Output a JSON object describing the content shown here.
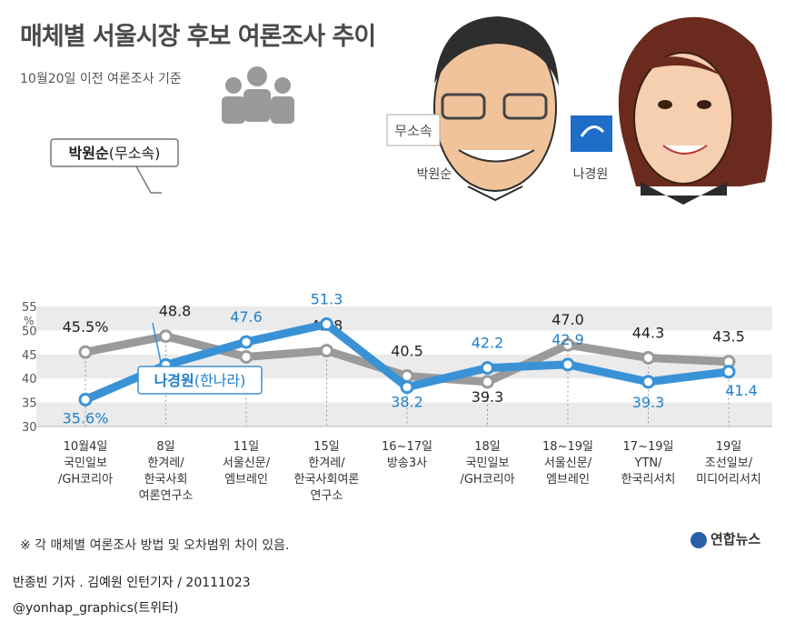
{
  "title": "매체별 서울시장 후보 여론조사 추이",
  "subtitle": "10월20일 이전 여론조사 기준",
  "footnote": "※ 각 매체별 여론조사 방법 및 오차범위 차이 있음.",
  "credit": "반종빈 기자 . 김예원 인턴기자 / 20111023",
  "twitter": "@yonhap_graphics(트위터)",
  "logo": "연합뉴스",
  "photo_labels": {
    "park": "박원순",
    "na": "나경원",
    "park_badge": "무소속"
  },
  "colors": {
    "park": "#9a9a9a",
    "na": "#3a92d6",
    "band": "#ebebeb"
  },
  "chart_data": {
    "type": "line",
    "ylabel": "%",
    "ylim": [
      30,
      55
    ],
    "yticks": [
      30,
      35,
      40,
      45,
      50,
      55
    ],
    "categories": [
      [
        "10월4일",
        "국민일보",
        "/GH코리아"
      ],
      [
        "8일",
        "한겨레/",
        "한국사회",
        "여론연구소"
      ],
      [
        "11일",
        "서울신문/",
        "엠브레인"
      ],
      [
        "15일",
        "한겨레/",
        "한국사회여론",
        "연구소"
      ],
      [
        "16~17일",
        "방송3사"
      ],
      [
        "18일",
        "국민일보",
        "/GH코리아"
      ],
      [
        "18~19일",
        "서울신문/",
        "엠브레인"
      ],
      [
        "17~19일",
        "YTN/",
        "한국리서치"
      ],
      [
        "19일",
        "조선일보/",
        "미디어리서치"
      ]
    ],
    "series": [
      {
        "name": "박원순",
        "party": "무소속",
        "values": [
          45.5,
          48.8,
          44.5,
          45.8,
          40.5,
          39.3,
          47.0,
          44.3,
          43.5
        ],
        "labels": [
          "45.5%",
          "48.8",
          "44.5",
          "45.8",
          "40.5",
          "39.3",
          "47.0",
          "44.3",
          "43.5"
        ]
      },
      {
        "name": "나경원",
        "party": "한나라",
        "values": [
          35.6,
          42.8,
          47.6,
          51.3,
          38.2,
          42.2,
          42.9,
          39.3,
          41.4
        ],
        "labels": [
          "35.6%",
          "42.8",
          "47.6",
          "51.3",
          "38.2",
          "42.2",
          "42.9",
          "39.3",
          "41.4"
        ]
      }
    ]
  }
}
